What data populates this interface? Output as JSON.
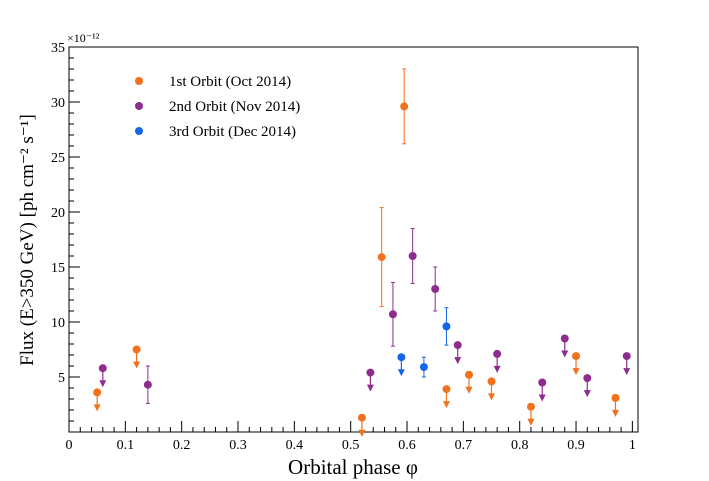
{
  "chart_data": {
    "type": "scatter",
    "title": "",
    "xlabel": "Orbital phase φ",
    "ylabel": "Flux (E>350 GeV) [ph cm⁻² s⁻¹]",
    "y_multiplier": "×10⁻¹²",
    "xlim": [
      0,
      1.01
    ],
    "ylim": [
      0,
      35
    ],
    "xticks": [
      "0",
      "0.1",
      "0.2",
      "0.3",
      "0.4",
      "0.5",
      "0.6",
      "0.7",
      "0.8",
      "0.9",
      "1"
    ],
    "yticks": [
      "5",
      "10",
      "15",
      "20",
      "25",
      "30",
      "35"
    ],
    "legend_position": "top-left",
    "series": [
      {
        "name": "1st Orbit (Oct 2014)",
        "color": "#f2711c",
        "measurements": [
          {
            "x": 0.555,
            "y": 15.9,
            "err_low": 4.5,
            "err_high": 4.5
          },
          {
            "x": 0.595,
            "y": 29.6,
            "err_low": 3.4,
            "err_high": 3.4
          }
        ],
        "upper_limits": [
          {
            "x": 0.05,
            "y": 3.6
          },
          {
            "x": 0.12,
            "y": 7.5
          },
          {
            "x": 0.52,
            "y": 1.3
          },
          {
            "x": 0.67,
            "y": 3.9
          },
          {
            "x": 0.71,
            "y": 5.2
          },
          {
            "x": 0.75,
            "y": 4.6
          },
          {
            "x": 0.82,
            "y": 2.3
          },
          {
            "x": 0.9,
            "y": 6.9
          },
          {
            "x": 0.97,
            "y": 3.1
          }
        ]
      },
      {
        "name": "2nd Orbit (Nov 2014)",
        "color": "#8e2d8e",
        "measurements": [
          {
            "x": 0.14,
            "y": 4.3,
            "err_low": 1.7,
            "err_high": 1.7
          },
          {
            "x": 0.575,
            "y": 10.7,
            "err_low": 2.9,
            "err_high": 2.9
          },
          {
            "x": 0.61,
            "y": 16.0,
            "err_low": 2.5,
            "err_high": 2.5
          },
          {
            "x": 0.65,
            "y": 13.0,
            "err_low": 2.0,
            "err_high": 2.0
          }
        ],
        "upper_limits": [
          {
            "x": 0.06,
            "y": 5.8
          },
          {
            "x": 0.535,
            "y": 5.4
          },
          {
            "x": 0.69,
            "y": 7.9
          },
          {
            "x": 0.76,
            "y": 7.1
          },
          {
            "x": 0.84,
            "y": 4.5
          },
          {
            "x": 0.88,
            "y": 8.5
          },
          {
            "x": 0.92,
            "y": 4.9
          },
          {
            "x": 0.99,
            "y": 6.9
          }
        ]
      },
      {
        "name": "3rd Orbit (Dec 2014)",
        "color": "#1565e8",
        "measurements": [
          {
            "x": 0.63,
            "y": 5.9,
            "err_low": 0.9,
            "err_high": 0.9
          },
          {
            "x": 0.67,
            "y": 9.6,
            "err_low": 1.7,
            "err_high": 1.7
          }
        ],
        "upper_limits": [
          {
            "x": 0.59,
            "y": 6.8
          }
        ]
      }
    ]
  }
}
